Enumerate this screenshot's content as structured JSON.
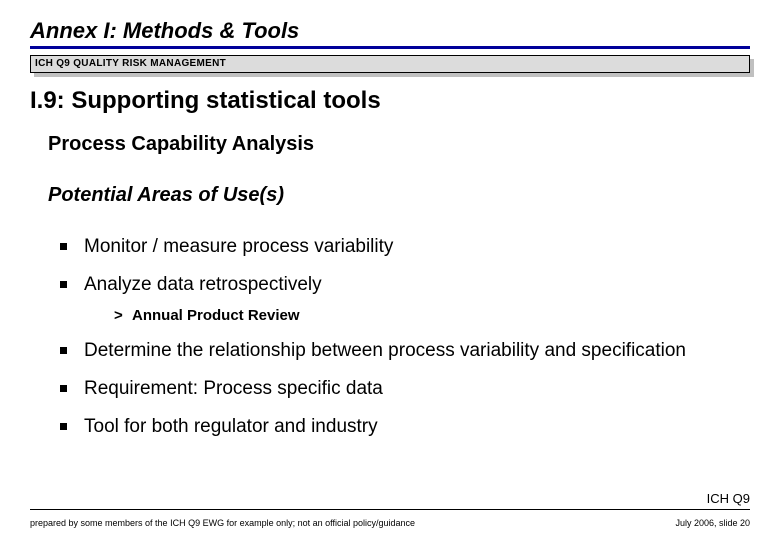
{
  "annex_title": "Annex I: Methods & Tools",
  "banner": "ICH Q9 QUALITY RISK MANAGEMENT",
  "section_title": "I.9: Supporting statistical tools",
  "topic": "Process Capability Analysis",
  "areas_heading": "Potential Areas of Use(s)",
  "bullets": {
    "b1": "Monitor / measure process variability",
    "b2": "Analyze data retrospectively",
    "b2_sub": "Annual Product Review",
    "b3": "Determine the relationship between process variability and specification",
    "b4": "Requirement: Process specific data",
    "b5": "Tool for both regulator and industry"
  },
  "footer": {
    "brand": "ICH Q9",
    "left": "prepared by some members of the ICH Q9 EWG for example only; not an official policy/guidance",
    "right": "July 2006, slide 20"
  },
  "colors": {
    "underline": "#000099",
    "banner_bg": "#dcdcdc",
    "banner_shadow": "#c0c0c0",
    "text": "#000000",
    "background": "#ffffff"
  },
  "typography": {
    "annex_title_pt": 22,
    "section_title_pt": 24,
    "topic_pt": 20,
    "bullet_pt": 19,
    "sub_pt": 15,
    "footer_brand_pt": 13,
    "footer_small_pt": 9
  }
}
